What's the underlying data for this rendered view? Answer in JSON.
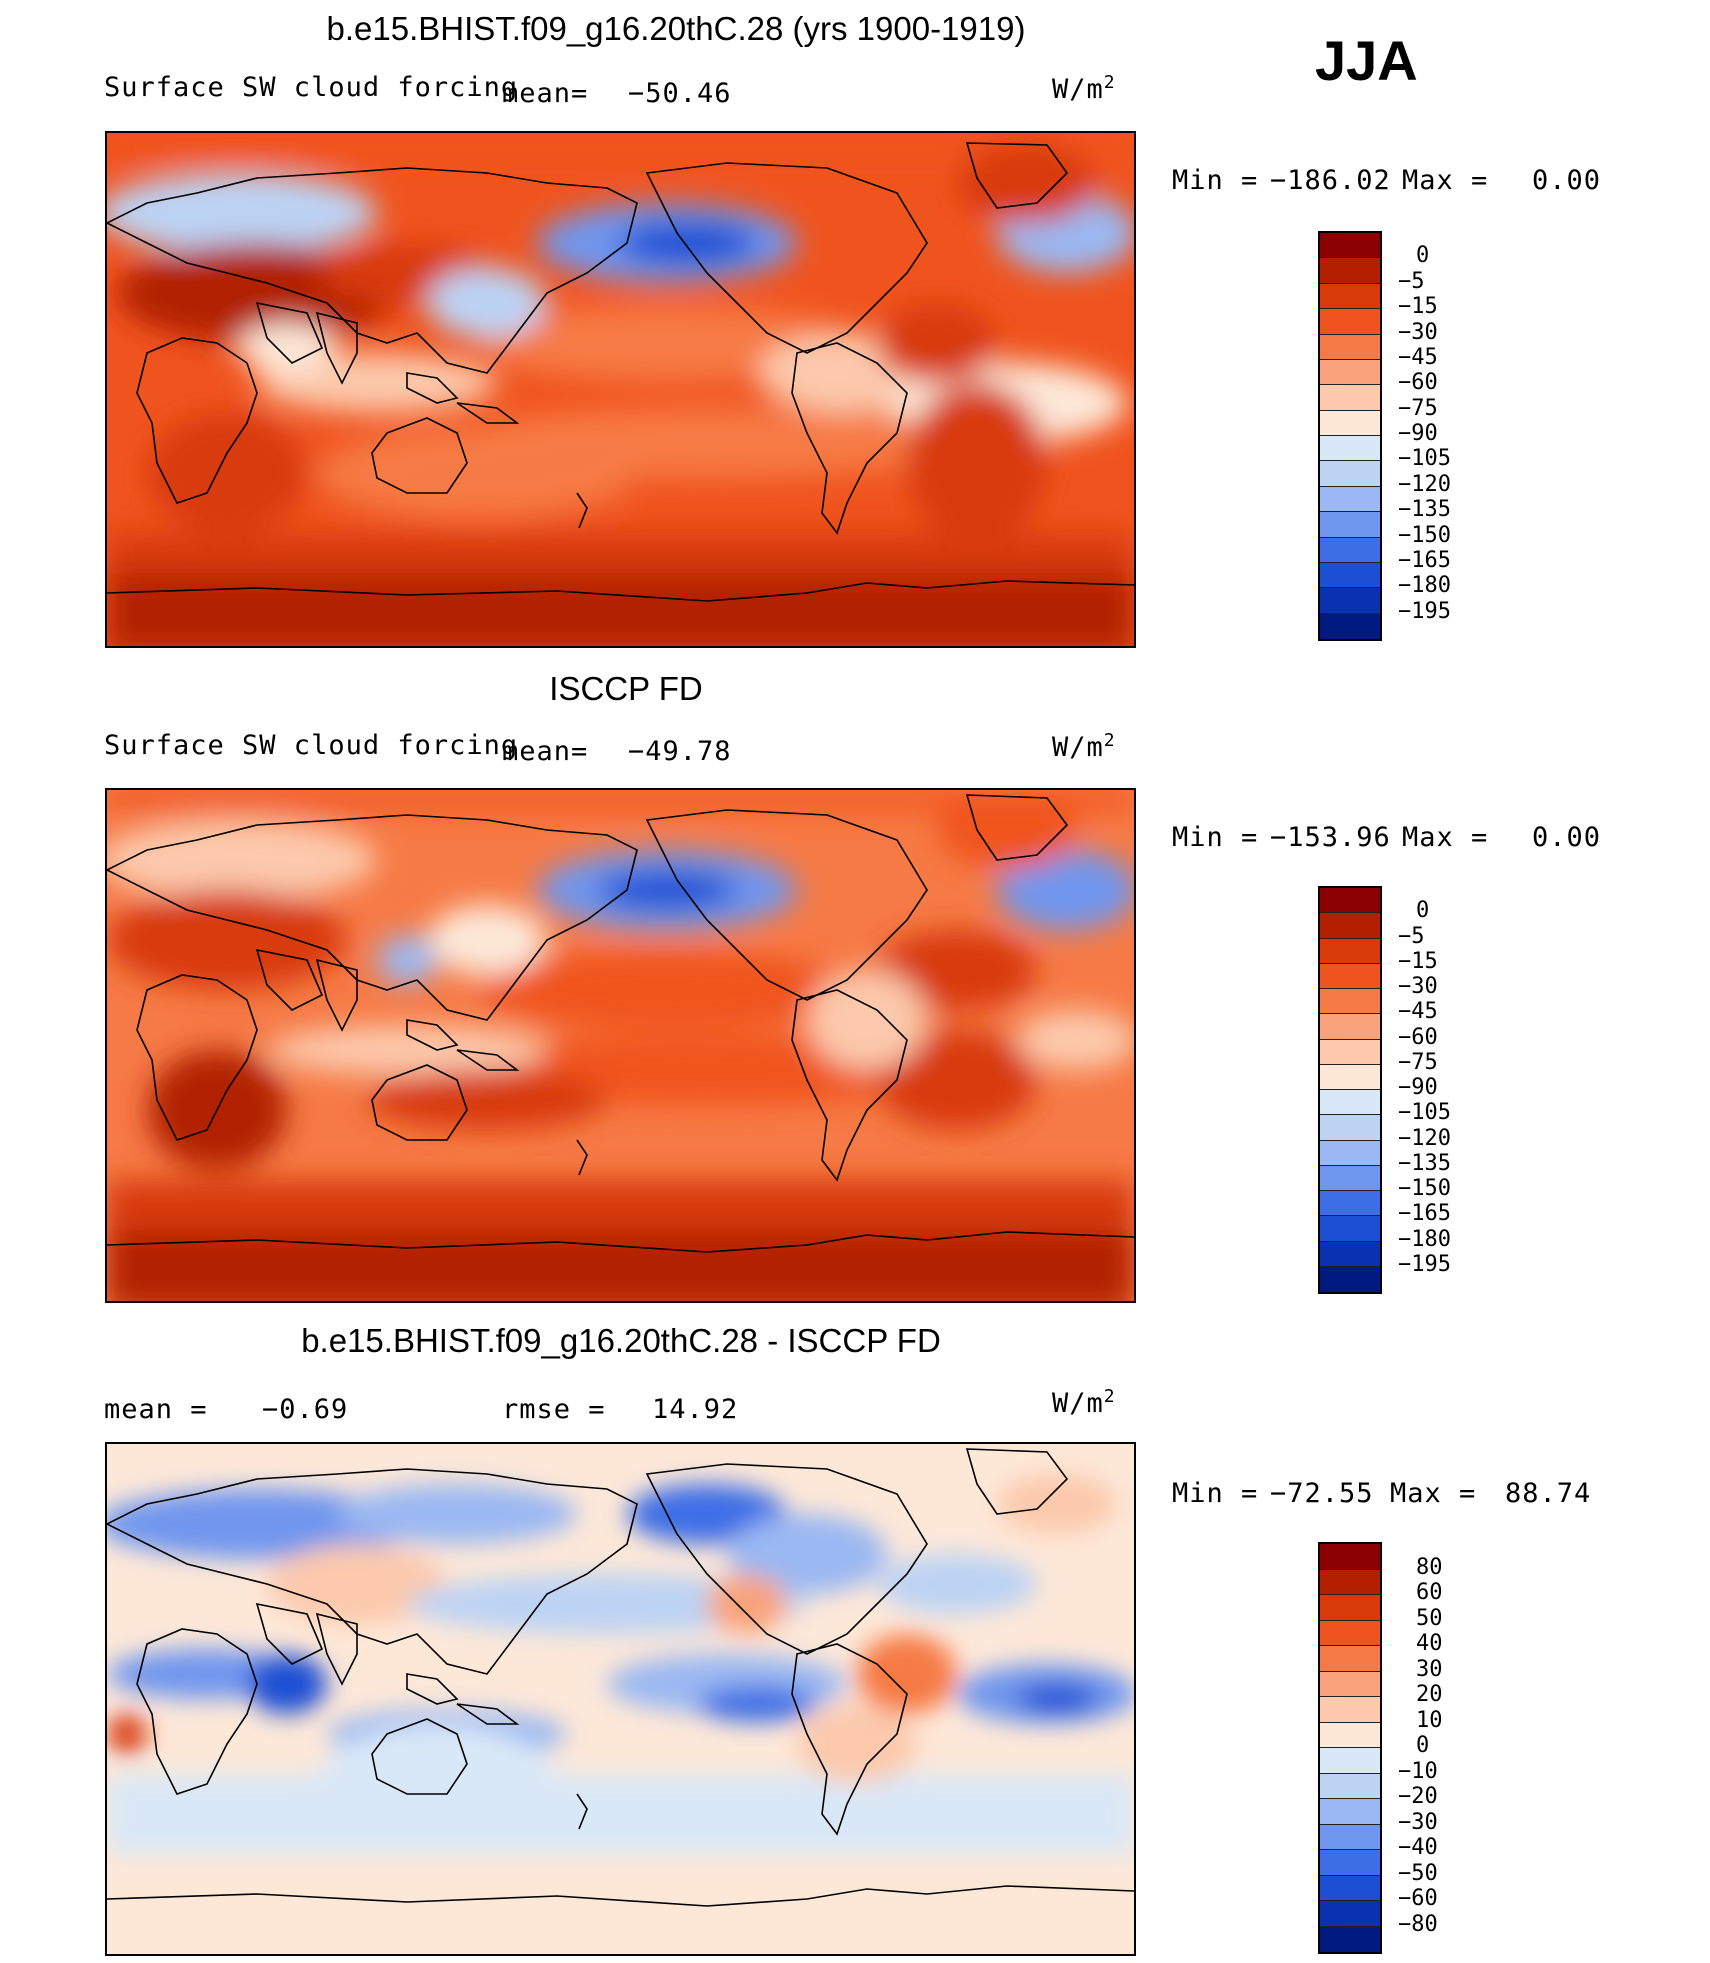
{
  "season": "JJA",
  "units_base": "W/m",
  "units_exp": "2",
  "panels": [
    {
      "title": "b.e15.BHIST.f09_g16.20thC.28 (yrs 1900-1919)",
      "var_label": "Surface SW cloud forcing",
      "mean_label": "mean=",
      "mean_value": "−50.46",
      "min_label": "Min =",
      "min_value": "−186.02",
      "max_label": "Max =",
      "max_value": "0.00",
      "levels": [
        "0",
        "−5",
        "−15",
        "−30",
        "−45",
        "−60",
        "−75",
        "−90",
        "−105",
        "−120",
        "−135",
        "−150",
        "−165",
        "−180",
        "−195"
      ],
      "colors": [
        "#8b0000",
        "#b22000",
        "#d83a0a",
        "#f0541e",
        "#f67a45",
        "#f9a37a",
        "#fcc9ac",
        "#fde8d8",
        "#d9e8f7",
        "#bcd3f4",
        "#9ab8f2",
        "#6f96ee",
        "#3d6ee6",
        "#1d4fd4",
        "#0a32b0",
        "#001a80"
      ]
    },
    {
      "title": "ISCCP FD",
      "var_label": "Surface SW cloud forcing",
      "mean_label": "mean=",
      "mean_value": "−49.78",
      "min_label": "Min =",
      "min_value": "−153.96",
      "max_label": "Max =",
      "max_value": "0.00",
      "levels": [
        "0",
        "−5",
        "−15",
        "−30",
        "−45",
        "−60",
        "−75",
        "−90",
        "−105",
        "−120",
        "−135",
        "−150",
        "−165",
        "−180",
        "−195"
      ],
      "colors": [
        "#8b0000",
        "#b22000",
        "#d83a0a",
        "#f0541e",
        "#f67a45",
        "#f9a37a",
        "#fcc9ac",
        "#fde8d8",
        "#d9e8f7",
        "#bcd3f4",
        "#9ab8f2",
        "#6f96ee",
        "#3d6ee6",
        "#1d4fd4",
        "#0a32b0",
        "#001a80"
      ]
    },
    {
      "title": "b.e15.BHIST.f09_g16.20thC.28 - ISCCP FD",
      "mean_label": "mean =",
      "mean_value": "−0.69",
      "rmse_label": "rmse =",
      "rmse_value": "14.92",
      "min_label": "Min =",
      "min_value": "−72.55",
      "max_label": "Max =",
      "max_value": "88.74",
      "levels": [
        "80",
        "60",
        "50",
        "40",
        "30",
        "20",
        "10",
        "0",
        "−10",
        "−20",
        "−30",
        "−40",
        "−50",
        "−60",
        "−80"
      ],
      "colors": [
        "#8b0000",
        "#b22000",
        "#d83a0a",
        "#f0541e",
        "#f67a45",
        "#f9a37a",
        "#fcc9ac",
        "#fde8d8",
        "#d9e8f7",
        "#bcd3f4",
        "#9ab8f2",
        "#6f96ee",
        "#3d6ee6",
        "#1d4fd4",
        "#0a32b0",
        "#001a80"
      ]
    }
  ]
}
